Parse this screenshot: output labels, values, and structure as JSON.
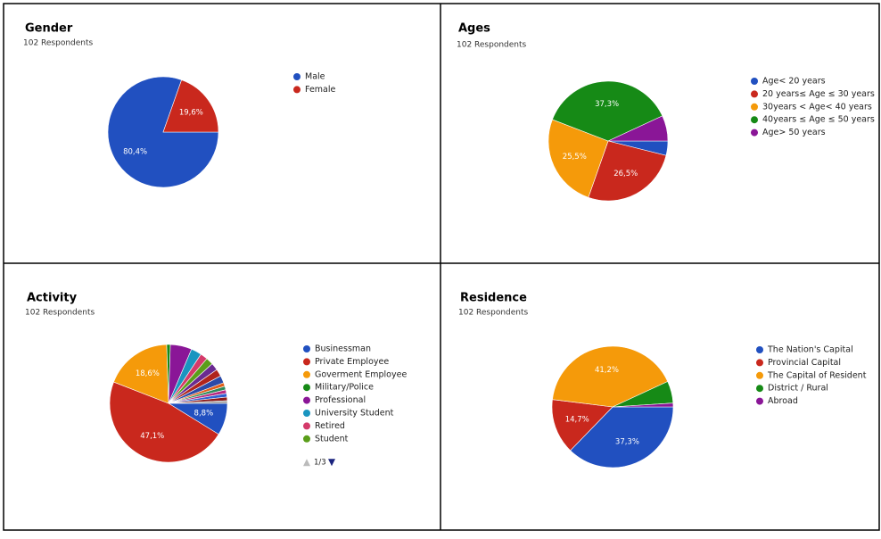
{
  "chart_data": [
    {
      "type": "pie",
      "title": "Gender",
      "subtitle": "102 Respondents",
      "categories": [
        "Male",
        "Female"
      ],
      "values": [
        80.4,
        19.6
      ],
      "value_labels": [
        "80,4%",
        "19,6%"
      ],
      "colors": [
        "#2150c0",
        "#c9281d"
      ]
    },
    {
      "type": "pie",
      "title": "Ages",
      "subtitle": "102 Respondents",
      "categories": [
        "Age< 20  years",
        "20 years≤ Age ≤ 30 years",
        "30years < Age< 40  years",
        "40years ≤ Age ≤ 50 years",
        "Age> 50 years"
      ],
      "values": [
        3.9,
        26.5,
        25.5,
        37.3,
        6.9
      ],
      "value_labels": [
        null,
        "26,5%",
        "25,5%",
        "37,3%",
        null
      ],
      "colors": [
        "#2150c0",
        "#c9281d",
        "#f59a0a",
        "#168a16",
        "#8a1697"
      ]
    },
    {
      "type": "pie",
      "title": "Activity",
      "subtitle": "102 Respondents",
      "categories": [
        "Businessman",
        "Private Employee",
        "Goverment Employee",
        "Military/Police",
        "Professional",
        "University Student",
        "Retired",
        "Student",
        null,
        null,
        null,
        null,
        null,
        null,
        null,
        null,
        null
      ],
      "values": [
        8.8,
        47.1,
        18.6,
        1.0,
        5.9,
        2.9,
        2.0,
        2.0,
        2.0,
        2.0,
        2.0,
        1.0,
        1.0,
        1.0,
        1.0,
        1.0,
        0.7
      ],
      "value_labels": [
        "8,8%",
        "47,1%",
        "18,6%",
        null,
        null,
        null,
        null,
        null,
        null,
        null,
        null,
        null,
        null,
        null,
        null,
        null,
        null
      ],
      "colors": [
        "#2150c0",
        "#c9281d",
        "#f59a0a",
        "#168a16",
        "#8a1697",
        "#1a95c0",
        "#d43a6a",
        "#5a9e1a",
        "#6a2a90",
        "#b0241c",
        "#2a4aa8",
        "#e05e1a",
        "#2e8a5a",
        "#b82a82",
        "#3060d0",
        "#8c1a1a",
        "#a0a0a0"
      ],
      "legend_page": "1/3"
    },
    {
      "type": "pie",
      "title": "Residence",
      "subtitle": "102 Respondents",
      "categories": [
        "The Nation's Capital",
        "Provincial Capital",
        "The Capital of Resident",
        "District / Rural",
        "Abroad"
      ],
      "values": [
        37.3,
        14.7,
        41.2,
        5.9,
        1.0
      ],
      "value_labels": [
        "37,3%",
        "14,7%",
        "41,2%",
        null,
        null
      ],
      "colors": [
        "#2150c0",
        "#c9281d",
        "#f59a0a",
        "#168a16",
        "#8a1697"
      ]
    }
  ]
}
